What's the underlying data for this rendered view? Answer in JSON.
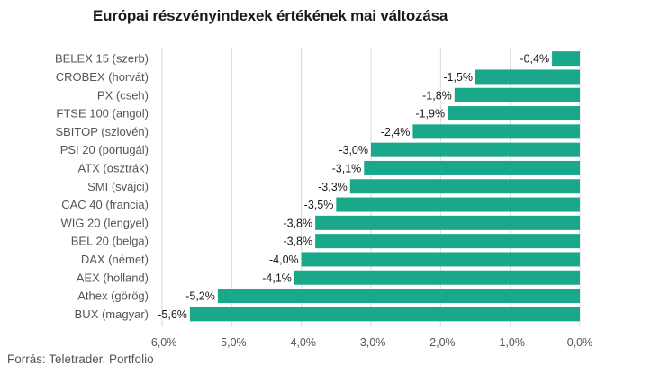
{
  "title": "Európai részvényindexek értékének mai változása",
  "source": "Forrás: Teletrader, Portfolio",
  "bar_color": "#1aa88a",
  "chart_data": {
    "type": "bar",
    "orientation": "horizontal",
    "title": "Európai részvényindexek értékének mai változása",
    "categories": [
      "BELEX 15 (szerb)",
      "CROBEX (horvát)",
      "PX (cseh)",
      "FTSE 100 (angol)",
      "SBITOP (szlovén)",
      "PSI 20 (portugál)",
      "ATX (osztrák)",
      "SMI (svájci)",
      "CAC 40 (francia)",
      "WIG 20 (lengyel)",
      "BEL 20 (belga)",
      "DAX (német)",
      "AEX (holland)",
      "Athex (görög)",
      "BUX (magyar)"
    ],
    "values": [
      -0.4,
      -1.5,
      -1.8,
      -1.9,
      -2.4,
      -3.0,
      -3.1,
      -3.3,
      -3.5,
      -3.8,
      -3.8,
      -4.0,
      -4.1,
      -5.2,
      -5.6
    ],
    "value_labels": [
      "-0,4%",
      "-1,5%",
      "-1,8%",
      "-1,9%",
      "-2,4%",
      "-3,0%",
      "-3,1%",
      "-3,3%",
      "-3,5%",
      "-3,8%",
      "-3,8%",
      "-4,0%",
      "-4,1%",
      "-5,2%",
      "-5,6%"
    ],
    "xlim": [
      -6.0,
      0.0
    ],
    "x_ticks": [
      -6.0,
      -5.0,
      -4.0,
      -3.0,
      -2.0,
      -1.0,
      0.0
    ],
    "x_tick_labels": [
      "-6,0%",
      "-5,0%",
      "-4,0%",
      "-3,0%",
      "-2,0%",
      "-1,0%",
      "0,0%"
    ],
    "grid": true
  }
}
